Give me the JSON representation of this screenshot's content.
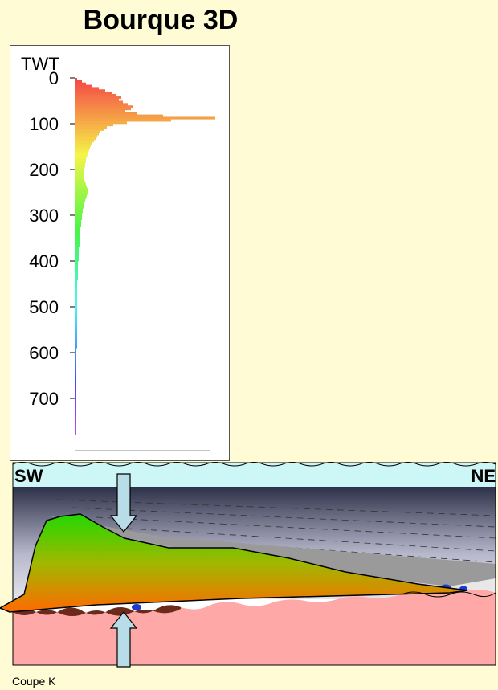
{
  "title": "Bourque 3D",
  "histogram": {
    "axis_label": "TWT",
    "ticks": [
      "0",
      "100",
      "200",
      "300",
      "400",
      "500",
      "600",
      "700"
    ]
  },
  "section": {
    "left_label": "SW",
    "right_label": "NE"
  },
  "caption": "Coupe K",
  "chart_data": {
    "type": "bar",
    "orientation": "horizontal",
    "ylabel": "TWT",
    "ylim": [
      0,
      780
    ],
    "bin_width": 5,
    "y": [
      0,
      5,
      10,
      15,
      20,
      25,
      30,
      35,
      40,
      45,
      50,
      55,
      60,
      65,
      70,
      75,
      80,
      85,
      90,
      95,
      100,
      105,
      110,
      115,
      120,
      125,
      130,
      135,
      140,
      145,
      150,
      155,
      160,
      165,
      170,
      175,
      180,
      185,
      190,
      195,
      200,
      205,
      210,
      215,
      220,
      225,
      230,
      235,
      240,
      245,
      250,
      255,
      260,
      265,
      270,
      275,
      280,
      285,
      290,
      295,
      300,
      305,
      310,
      315,
      320,
      325,
      330,
      335,
      340,
      345,
      350,
      355,
      360,
      365,
      370,
      375,
      380,
      385,
      390,
      395,
      400,
      405,
      410,
      415,
      420,
      425,
      430,
      435,
      440,
      445,
      450,
      455,
      460,
      465,
      470,
      475,
      480,
      485,
      490,
      495,
      500,
      505,
      510,
      515,
      520,
      525,
      530,
      535,
      540,
      545,
      550,
      555,
      560,
      565,
      570,
      575,
      580,
      585,
      590,
      595,
      600,
      605,
      610,
      615,
      620,
      625,
      630,
      635,
      640,
      645,
      650,
      655,
      660,
      665,
      670,
      675,
      680,
      685,
      690,
      695,
      700,
      705,
      710,
      715,
      720,
      725,
      730,
      735,
      740,
      745,
      750,
      755,
      760,
      765,
      770,
      775
    ],
    "values": [
      3,
      9,
      14,
      22,
      30,
      38,
      46,
      52,
      58,
      55,
      60,
      66,
      72,
      70,
      63,
      78,
      110,
      175,
      120,
      65,
      48,
      40,
      36,
      32,
      30,
      28,
      26,
      24,
      22,
      20,
      19,
      18,
      17,
      16,
      15,
      14,
      14,
      13,
      13,
      12,
      12,
      12,
      11,
      11,
      12,
      13,
      14,
      15,
      16,
      17,
      16,
      15,
      14,
      13,
      12,
      11,
      11,
      10,
      10,
      9,
      9,
      9,
      8,
      8,
      8,
      7,
      7,
      7,
      7,
      6,
      6,
      6,
      6,
      6,
      5,
      5,
      5,
      5,
      5,
      5,
      4,
      4,
      4,
      4,
      4,
      4,
      4,
      4,
      3,
      3,
      3,
      3,
      3,
      3,
      3,
      3,
      3,
      3,
      3,
      3,
      3,
      3,
      3,
      3,
      3,
      3,
      3,
      3,
      3,
      3,
      3,
      3,
      3,
      3,
      3,
      3,
      3,
      3,
      2,
      2,
      2,
      2,
      2,
      2,
      2,
      2,
      2,
      2,
      2,
      2,
      2,
      2,
      2,
      2,
      2,
      2,
      2,
      2,
      2,
      2,
      2,
      2,
      2,
      2,
      2,
      2,
      2,
      2,
      2,
      2,
      2,
      2,
      2,
      2,
      2,
      2
    ]
  }
}
